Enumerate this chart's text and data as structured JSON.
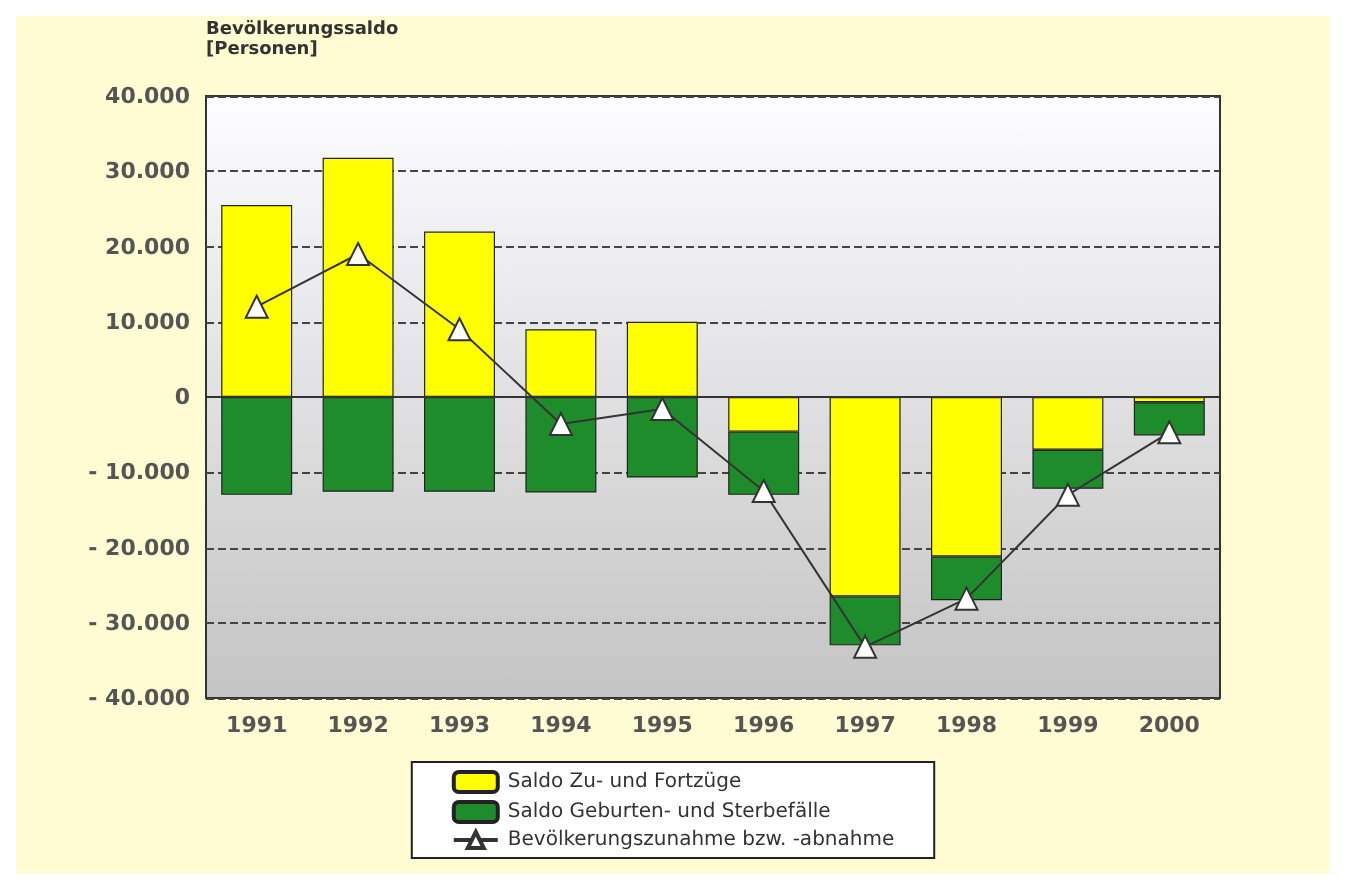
{
  "chart_data": {
    "type": "bar",
    "ylabel": "Bevölkerungssaldo\n[Personen]",
    "categories": [
      "1991",
      "1992",
      "1993",
      "1994",
      "1995",
      "1996",
      "1997",
      "1998",
      "1999",
      "2000"
    ],
    "stacked": true,
    "series": [
      {
        "name": "Saldo Zu- und Fortzüge",
        "color": "#ffff00",
        "values": [
          25500,
          31800,
          22000,
          9000,
          10000,
          -4600,
          -26500,
          -21200,
          -7000,
          -700
        ]
      },
      {
        "name": "Saldo Geburten- und Sterbefälle",
        "color": "#1f8c2c",
        "values": [
          -13000,
          -12600,
          -12600,
          -12700,
          -10700,
          -8400,
          -6500,
          -5800,
          -5200,
          -4400
        ]
      },
      {
        "name": "Bevölkerungszunahme bzw. -abnahme",
        "type": "line",
        "color": "#333333",
        "marker": "triangle",
        "values": [
          12000,
          19000,
          9000,
          -3600,
          -1600,
          -12500,
          -33200,
          -26800,
          -13000,
          -4700
        ]
      }
    ],
    "ylim": [
      -40000,
      40000
    ],
    "yticks": [
      {
        "value": -40000,
        "label": "- 40.000"
      },
      {
        "value": -30000,
        "label": "- 30.000"
      },
      {
        "value": -20000,
        "label": "- 20.000"
      },
      {
        "value": -10000,
        "label": "- 10.000"
      },
      0,
      {
        "value": 10000,
        "label": "10.000"
      },
      {
        "value": 20000,
        "label": "20.000"
      },
      {
        "value": 30000,
        "label": "30.000"
      },
      {
        "value": 40000,
        "label": "40.000"
      }
    ],
    "grid": "y",
    "legend": "bottom"
  }
}
